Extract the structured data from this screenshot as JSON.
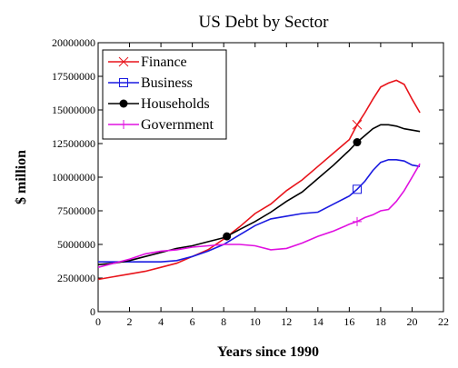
{
  "chart_data": {
    "type": "line",
    "title": "US Debt by Sector",
    "xlabel": "Years since 1990",
    "ylabel": "$ million",
    "xlim": [
      0,
      22
    ],
    "ylim": [
      0,
      20000000
    ],
    "x_ticks": [
      "0",
      "2",
      "4",
      "6",
      "8",
      "10",
      "12",
      "14",
      "16",
      "18",
      "20",
      "22"
    ],
    "y_ticks": [
      "0",
      "2500000",
      "5000000",
      "7500000",
      "10000000",
      "12500000",
      "15000000",
      "17500000",
      "20000000"
    ],
    "grid": false,
    "legend_position": "top-left",
    "series": [
      {
        "name": "Finance",
        "color": "#e8141b",
        "marker": "x",
        "marker_at": 16.5,
        "x": [
          0,
          1,
          2,
          3,
          4,
          5,
          6,
          7,
          8,
          9,
          10,
          11,
          12,
          13,
          14,
          15,
          16,
          16.5,
          17,
          17.5,
          18,
          18.5,
          19,
          19.5,
          20,
          20.5
        ],
        "y": [
          2400000,
          2600000,
          2800000,
          3000000,
          3300000,
          3600000,
          4100000,
          4600000,
          5400000,
          6300000,
          7300000,
          8000000,
          9000000,
          9800000,
          10800000,
          11800000,
          12800000,
          13900000,
          14800000,
          15800000,
          16700000,
          17000000,
          17200000,
          16900000,
          15800000,
          14800000
        ]
      },
      {
        "name": "Business",
        "color": "#1a1ae0",
        "marker": "square",
        "marker_at": 16.5,
        "x": [
          0,
          1,
          2,
          3,
          4,
          5,
          6,
          7,
          8,
          9,
          10,
          11,
          12,
          13,
          14,
          15,
          16,
          16.5,
          17,
          17.5,
          18,
          18.5,
          19,
          19.5,
          20,
          20.5
        ],
        "y": [
          3700000,
          3700000,
          3700000,
          3700000,
          3700000,
          3800000,
          4100000,
          4500000,
          5000000,
          5700000,
          6400000,
          6900000,
          7100000,
          7300000,
          7400000,
          8000000,
          8600000,
          9100000,
          9700000,
          10500000,
          11100000,
          11300000,
          11300000,
          11200000,
          10900000,
          10800000
        ]
      },
      {
        "name": "Households",
        "color": "#000000",
        "marker": "circle",
        "marker_at": 8.2,
        "marker_at_2": 16.5,
        "x": [
          0,
          1,
          2,
          3,
          4,
          5,
          6,
          7,
          8,
          8.2,
          9,
          10,
          11,
          12,
          13,
          14,
          15,
          16,
          16.5,
          17,
          17.5,
          18,
          18.5,
          19,
          19.5,
          20,
          20.5
        ],
        "y": [
          3500000,
          3600000,
          3800000,
          4100000,
          4400000,
          4700000,
          4900000,
          5200000,
          5500000,
          5600000,
          6100000,
          6700000,
          7400000,
          8200000,
          8900000,
          9900000,
          10900000,
          12000000,
          12600000,
          13100000,
          13600000,
          13900000,
          13900000,
          13800000,
          13600000,
          13500000,
          13400000
        ]
      },
      {
        "name": "Government",
        "color": "#e010e0",
        "marker": "plus",
        "marker_at": 16.5,
        "x": [
          0,
          1,
          2,
          3,
          4,
          5,
          6,
          7,
          8,
          9,
          10,
          11,
          12,
          13,
          14,
          15,
          16,
          16.5,
          17,
          17.5,
          18,
          18.5,
          19,
          19.5,
          20,
          20.5
        ],
        "y": [
          3300000,
          3600000,
          3900000,
          4300000,
          4500000,
          4600000,
          4800000,
          4900000,
          5000000,
          5000000,
          4900000,
          4600000,
          4700000,
          5100000,
          5600000,
          6000000,
          6500000,
          6700000,
          7000000,
          7200000,
          7500000,
          7600000,
          8200000,
          9000000,
          10000000,
          11000000
        ]
      }
    ]
  }
}
